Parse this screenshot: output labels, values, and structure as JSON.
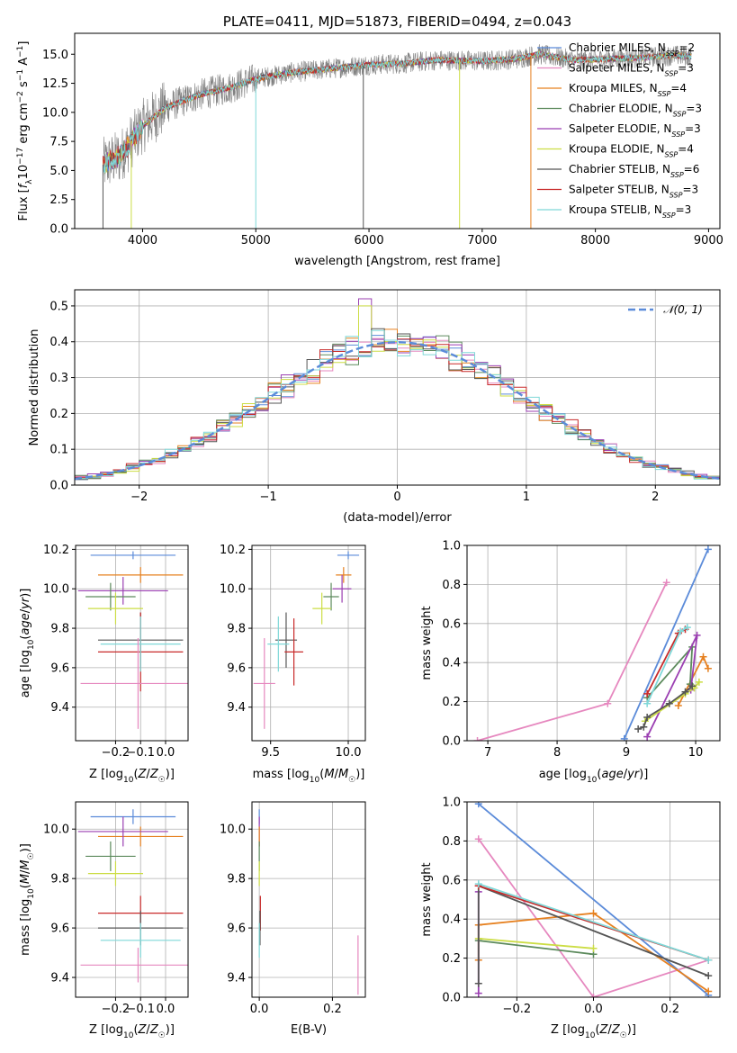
{
  "chart_data": [
    {
      "panel": "spectrum",
      "type": "line",
      "title": "PLATE=0411, MJD=51873, FIBERID=0494, z=0.043",
      "xlabel": "wavelength [Angstrom, rest frame]",
      "ylabel": "Flux [fλ10⁻¹⁷ erg cm⁻² s⁻¹ A⁻¹]",
      "xlim": [
        3400,
        9100
      ],
      "ylim": [
        0,
        16.8
      ],
      "xticks": [
        4000,
        5000,
        6000,
        7000,
        8000,
        9000
      ],
      "yticks": [
        0.0,
        2.5,
        5.0,
        7.5,
        10.0,
        12.5,
        15.0
      ],
      "grid": false,
      "legend_position": "top-right",
      "data_envelope": {
        "x": [
          3650,
          3800,
          4000,
          4200,
          4500,
          4800,
          5000,
          5300,
          5600,
          6000,
          6300,
          6600,
          7000,
          7300,
          7500,
          7800,
          8100,
          8400,
          8700,
          8850
        ],
        "y": [
          5.5,
          6.2,
          8.8,
          10.4,
          11.5,
          12.2,
          12.9,
          13.4,
          13.7,
          14.1,
          14.2,
          14.5,
          14.4,
          14.6,
          15.0,
          14.5,
          14.6,
          14.7,
          14.9,
          14.8
        ]
      },
      "series": [
        {
          "name": "Chabrier MILES, N_SSP=2",
          "color": "#5b8bd9"
        },
        {
          "name": "Salpeter MILES, N_SSP=3",
          "color": "#e688bf"
        },
        {
          "name": "Kroupa MILES, N_SSP=4",
          "color": "#e6801f"
        },
        {
          "name": "Chabrier ELODIE, N_SSP=3",
          "color": "#5c8a5c"
        },
        {
          "name": "Salpeter ELODIE, N_SSP=3",
          "color": "#9b3fb2"
        },
        {
          "name": "Kroupa ELODIE, N_SSP=4",
          "color": "#ccdd44"
        },
        {
          "name": "Chabrier STELIB, N_SSP=6",
          "color": "#555555"
        },
        {
          "name": "Salpeter STELIB, N_SSP=3",
          "color": "#c82a2a"
        },
        {
          "name": "Kroupa STELIB, N_SSP=3",
          "color": "#7fd8d8"
        }
      ],
      "legend_labels": [
        {
          "prefix": "Chabrier MILES, N",
          "sub": "SSP",
          "suffix": "=2"
        },
        {
          "prefix": "Salpeter MILES, N",
          "sub": "SSP",
          "suffix": "=3"
        },
        {
          "prefix": "Kroupa MILES, N",
          "sub": "SSP",
          "suffix": "=4"
        },
        {
          "prefix": "Chabrier ELODIE, N",
          "sub": "SSP",
          "suffix": "=3"
        },
        {
          "prefix": "Salpeter ELODIE, N",
          "sub": "SSP",
          "suffix": "=3"
        },
        {
          "prefix": "Kroupa ELODIE, N",
          "sub": "SSP",
          "suffix": "=4"
        },
        {
          "prefix": "Chabrier STELIB, N",
          "sub": "SSP",
          "suffix": "=6"
        },
        {
          "prefix": "Salpeter STELIB, N",
          "sub": "SSP",
          "suffix": "=3"
        },
        {
          "prefix": "Kroupa STELIB, N",
          "sub": "SSP",
          "suffix": "=3"
        }
      ]
    },
    {
      "panel": "residuals",
      "type": "histogram",
      "xlabel": "(data-model)/error",
      "ylabel": "Normed distribution",
      "xlim": [
        -2.5,
        2.5
      ],
      "ylim": [
        0,
        0.545
      ],
      "xticks": [
        -2,
        -1,
        0,
        1,
        2
      ],
      "yticks": [
        0.0,
        0.1,
        0.2,
        0.3,
        0.4,
        0.5
      ],
      "grid": true,
      "legend_position": "top-right",
      "reference_curve": {
        "name": "𝒩(0, 1)",
        "mean": 0,
        "sigma": 1,
        "color": "#5b8bd9",
        "style": "dashed"
      },
      "bin_width": 0.1,
      "peak_values": {
        "Salpeter ELODIE": 0.52,
        "Kroupa ELODIE": 0.5
      }
    },
    {
      "panel": "age-vs-Z",
      "type": "errorbar",
      "xlabel": "Z [log10(Z/Z☉)]",
      "ylabel": "age [log10(age/yr)]",
      "xlim": [
        -0.36,
        0.09
      ],
      "ylim": [
        9.23,
        10.22
      ],
      "xticks": [
        -0.2,
        -0.1,
        0.0
      ],
      "yticks": [
        9.4,
        9.6,
        9.8,
        10.0,
        10.2
      ],
      "grid": true,
      "points": [
        {
          "series": "Chabrier MILES",
          "x": -0.13,
          "xerr": 0.17,
          "y": 10.17,
          "yerr": 0.02
        },
        {
          "series": "Kroupa MILES",
          "x": -0.1,
          "xerr": 0.17,
          "y": 10.07,
          "yerr": 0.04
        },
        {
          "series": "Salpeter ELODIE",
          "x": -0.17,
          "xerr": 0.18,
          "y": 9.99,
          "yerr": 0.07
        },
        {
          "series": "Chabrier ELODIE",
          "x": -0.22,
          "xerr": 0.1,
          "y": 9.96,
          "yerr": 0.07
        },
        {
          "series": "Kroupa ELODIE",
          "x": -0.2,
          "xerr": 0.11,
          "y": 9.9,
          "yerr": 0.08
        },
        {
          "series": "Chabrier STELIB",
          "x": -0.1,
          "xerr": 0.17,
          "y": 9.74,
          "yerr": 0.14
        },
        {
          "series": "Salpeter STELIB",
          "x": -0.1,
          "xerr": 0.17,
          "y": 9.68,
          "yerr": 0.2
        },
        {
          "series": "Kroupa STELIB",
          "x": -0.1,
          "xerr": 0.16,
          "y": 9.72,
          "yerr": 0.14
        },
        {
          "series": "Salpeter MILES",
          "x": -0.11,
          "xerr": 0.23,
          "y": 9.52,
          "yerr": 0.23
        }
      ]
    },
    {
      "panel": "age-vs-mass",
      "type": "errorbar",
      "xlabel": "mass [log10(M/M☉)]",
      "ylabel": "",
      "xlim": [
        9.38,
        10.11
      ],
      "ylim": [
        9.23,
        10.22
      ],
      "xticks": [
        9.5,
        10.0
      ],
      "yticks": [
        9.4,
        9.6,
        9.8,
        10.0,
        10.2
      ],
      "grid": true,
      "points": [
        {
          "series": "Chabrier MILES",
          "x": 10.0,
          "xerr": 0.07,
          "y": 10.17,
          "yerr": 0.02
        },
        {
          "series": "Kroupa MILES",
          "x": 9.97,
          "xerr": 0.05,
          "y": 10.07,
          "yerr": 0.04
        },
        {
          "series": "Salpeter ELODIE",
          "x": 9.96,
          "xerr": 0.06,
          "y": 10.0,
          "yerr": 0.07
        },
        {
          "series": "Chabrier ELODIE",
          "x": 9.89,
          "xerr": 0.05,
          "y": 9.96,
          "yerr": 0.07
        },
        {
          "series": "Kroupa ELODIE",
          "x": 9.83,
          "xerr": 0.06,
          "y": 9.9,
          "yerr": 0.08
        },
        {
          "series": "Chabrier STELIB",
          "x": 9.6,
          "xerr": 0.07,
          "y": 9.74,
          "yerr": 0.14
        },
        {
          "series": "Salpeter STELIB",
          "x": 9.65,
          "xerr": 0.06,
          "y": 9.68,
          "yerr": 0.17
        },
        {
          "series": "Kroupa STELIB",
          "x": 9.55,
          "xerr": 0.07,
          "y": 9.72,
          "yerr": 0.14
        },
        {
          "series": "Salpeter MILES",
          "x": 9.46,
          "xerr": 0.07,
          "y": 9.52,
          "yerr": 0.23
        }
      ]
    },
    {
      "panel": "massweight-vs-age",
      "type": "line",
      "xlabel": "age [log10(age/yr)]",
      "ylabel": "mass weight",
      "xlim": [
        6.7,
        10.35
      ],
      "ylim": [
        0,
        1.0
      ],
      "xticks": [
        7,
        8,
        9,
        10
      ],
      "yticks": [
        0.0,
        0.2,
        0.4,
        0.6,
        0.8,
        1.0
      ],
      "grid": true,
      "series": [
        {
          "name": "Chabrier MILES",
          "x": [
            8.97,
            10.18
          ],
          "y": [
            0.01,
            0.98
          ]
        },
        {
          "name": "Salpeter MILES",
          "x": [
            6.85,
            8.73,
            9.58
          ],
          "y": [
            0.0,
            0.19,
            0.81
          ]
        },
        {
          "name": "Kroupa MILES",
          "x": [
            9.75,
            10.11,
            10.18
          ],
          "y": [
            0.18,
            0.43,
            0.37
          ]
        },
        {
          "name": "Chabrier ELODIE",
          "x": [
            9.3,
            9.95,
            9.92
          ],
          "y": [
            0.22,
            0.48,
            0.29
          ]
        },
        {
          "name": "Salpeter ELODIE",
          "x": [
            9.3,
            10.02,
            9.93
          ],
          "y": [
            0.02,
            0.54,
            0.26
          ]
        },
        {
          "name": "Kroupa ELODIE",
          "x": [
            9.27,
            9.85,
            9.98,
            10.05
          ],
          "y": [
            0.1,
            0.24,
            0.27,
            0.3
          ]
        },
        {
          "name": "Chabrier STELIB",
          "x": [
            9.17,
            9.25,
            9.3,
            9.62,
            9.85,
            9.95
          ],
          "y": [
            0.06,
            0.07,
            0.12,
            0.19,
            0.25,
            0.28
          ]
        },
        {
          "name": "Salpeter STELIB",
          "x": [
            9.3,
            9.75,
            9.85
          ],
          "y": [
            0.24,
            0.55,
            0.57
          ]
        },
        {
          "name": "Kroupa STELIB",
          "x": [
            9.3,
            9.78,
            9.88
          ],
          "y": [
            0.19,
            0.56,
            0.58
          ]
        }
      ]
    },
    {
      "panel": "mass-vs-Z",
      "type": "errorbar",
      "xlabel": "Z [log10(Z/Z☉)]",
      "ylabel": "mass [log10(M/M☉)]",
      "xlim": [
        -0.36,
        0.09
      ],
      "ylim": [
        9.32,
        10.11
      ],
      "xticks": [
        -0.2,
        -0.1,
        0.0
      ],
      "yticks": [
        9.4,
        9.6,
        9.8,
        10.0
      ],
      "grid": true,
      "points": [
        {
          "series": "Chabrier MILES",
          "x": -0.13,
          "xerr": 0.17,
          "y": 10.05,
          "yerr": 0.03
        },
        {
          "series": "Kroupa MILES",
          "x": -0.1,
          "xerr": 0.17,
          "y": 9.97,
          "yerr": 0.04
        },
        {
          "series": "Salpeter ELODIE",
          "x": -0.17,
          "xerr": 0.18,
          "y": 9.99,
          "yerr": 0.06
        },
        {
          "series": "Chabrier ELODIE",
          "x": -0.22,
          "xerr": 0.1,
          "y": 9.89,
          "yerr": 0.06
        },
        {
          "series": "Kroupa ELODIE",
          "x": -0.2,
          "xerr": 0.11,
          "y": 9.82,
          "yerr": 0.05
        },
        {
          "series": "Salpeter STELIB",
          "x": -0.1,
          "xerr": 0.17,
          "y": 9.66,
          "yerr": 0.07
        },
        {
          "series": "Chabrier STELIB",
          "x": -0.1,
          "xerr": 0.17,
          "y": 9.6,
          "yerr": 0.07
        },
        {
          "series": "Kroupa STELIB",
          "x": -0.1,
          "xerr": 0.16,
          "y": 9.55,
          "yerr": 0.07
        },
        {
          "series": "Salpeter MILES",
          "x": -0.11,
          "xerr": 0.23,
          "y": 9.45,
          "yerr": 0.07
        }
      ]
    },
    {
      "panel": "mass-vs-EBV",
      "type": "errorbar",
      "xlabel": "E(B-V)",
      "ylabel": "",
      "xlim": [
        -0.02,
        0.29
      ],
      "ylim": [
        9.32,
        10.11
      ],
      "xticks": [
        0.0,
        0.2
      ],
      "yticks": [
        9.4,
        9.6,
        9.8,
        10.0
      ],
      "grid": true,
      "points": [
        {
          "series": "Chabrier MILES",
          "x": 0.0,
          "xerr": 0.0,
          "y": 10.05,
          "yerr": 0.03
        },
        {
          "series": "Salpeter ELODIE",
          "x": 0.0,
          "xerr": 0.0,
          "y": 9.99,
          "yerr": 0.06
        },
        {
          "series": "Kroupa MILES",
          "x": 0.0,
          "xerr": 0.0,
          "y": 9.97,
          "yerr": 0.04
        },
        {
          "series": "Chabrier ELODIE",
          "x": 0.0,
          "xerr": 0.0,
          "y": 9.89,
          "yerr": 0.06
        },
        {
          "series": "Kroupa ELODIE",
          "x": 0.0,
          "xerr": 0.0,
          "y": 9.82,
          "yerr": 0.05
        },
        {
          "series": "Salpeter STELIB",
          "x": 0.003,
          "xerr": 0.0,
          "y": 9.66,
          "yerr": 0.07
        },
        {
          "series": "Chabrier STELIB",
          "x": 0.002,
          "xerr": 0.0,
          "y": 9.6,
          "yerr": 0.07
        },
        {
          "series": "Kroupa STELIB",
          "x": 0.0,
          "xerr": 0.0,
          "y": 9.55,
          "yerr": 0.07
        },
        {
          "series": "Salpeter MILES",
          "x": 0.27,
          "xerr": 0.0,
          "y": 9.45,
          "yerr": 0.12
        }
      ]
    },
    {
      "panel": "massweight-vs-Z",
      "type": "line",
      "xlabel": "Z [log10(Z/Z☉)]",
      "ylabel": "mass weight",
      "xlim": [
        -0.33,
        0.33
      ],
      "ylim": [
        0,
        1.0
      ],
      "xticks": [
        -0.2,
        0.0,
        0.2
      ],
      "yticks": [
        0.0,
        0.2,
        0.4,
        0.6,
        0.8,
        1.0
      ],
      "grid": true,
      "series": [
        {
          "name": "Chabrier MILES",
          "x": [
            -0.3,
            0.3
          ],
          "y": [
            0.99,
            0.01
          ]
        },
        {
          "name": "Salpeter MILES",
          "x": [
            -0.3,
            0.0,
            0.3
          ],
          "y": [
            0.81,
            0.0,
            0.19
          ]
        },
        {
          "name": "Kroupa MILES",
          "x": [
            -0.3,
            -0.3,
            0.0,
            0.3
          ],
          "y": [
            0.19,
            0.37,
            0.43,
            0.03
          ]
        },
        {
          "name": "Chabrier ELODIE",
          "x": [
            -0.3,
            0.0
          ],
          "y": [
            0.29,
            0.22
          ]
        },
        {
          "name": "Salpeter ELODIE",
          "x": [
            -0.3,
            -0.3
          ],
          "y": [
            0.02,
            0.54
          ]
        },
        {
          "name": "Kroupa ELODIE",
          "x": [
            -0.3,
            0.0
          ],
          "y": [
            0.3,
            0.25
          ]
        },
        {
          "name": "Chabrier STELIB",
          "x": [
            -0.3,
            -0.3,
            0.3
          ],
          "y": [
            0.07,
            0.57,
            0.11
          ]
        },
        {
          "name": "Salpeter STELIB",
          "x": [
            -0.3,
            0.3
          ],
          "y": [
            0.57,
            0.19
          ]
        },
        {
          "name": "Kroupa STELIB",
          "x": [
            -0.3,
            0.3
          ],
          "y": [
            0.58,
            0.19
          ]
        }
      ]
    }
  ]
}
